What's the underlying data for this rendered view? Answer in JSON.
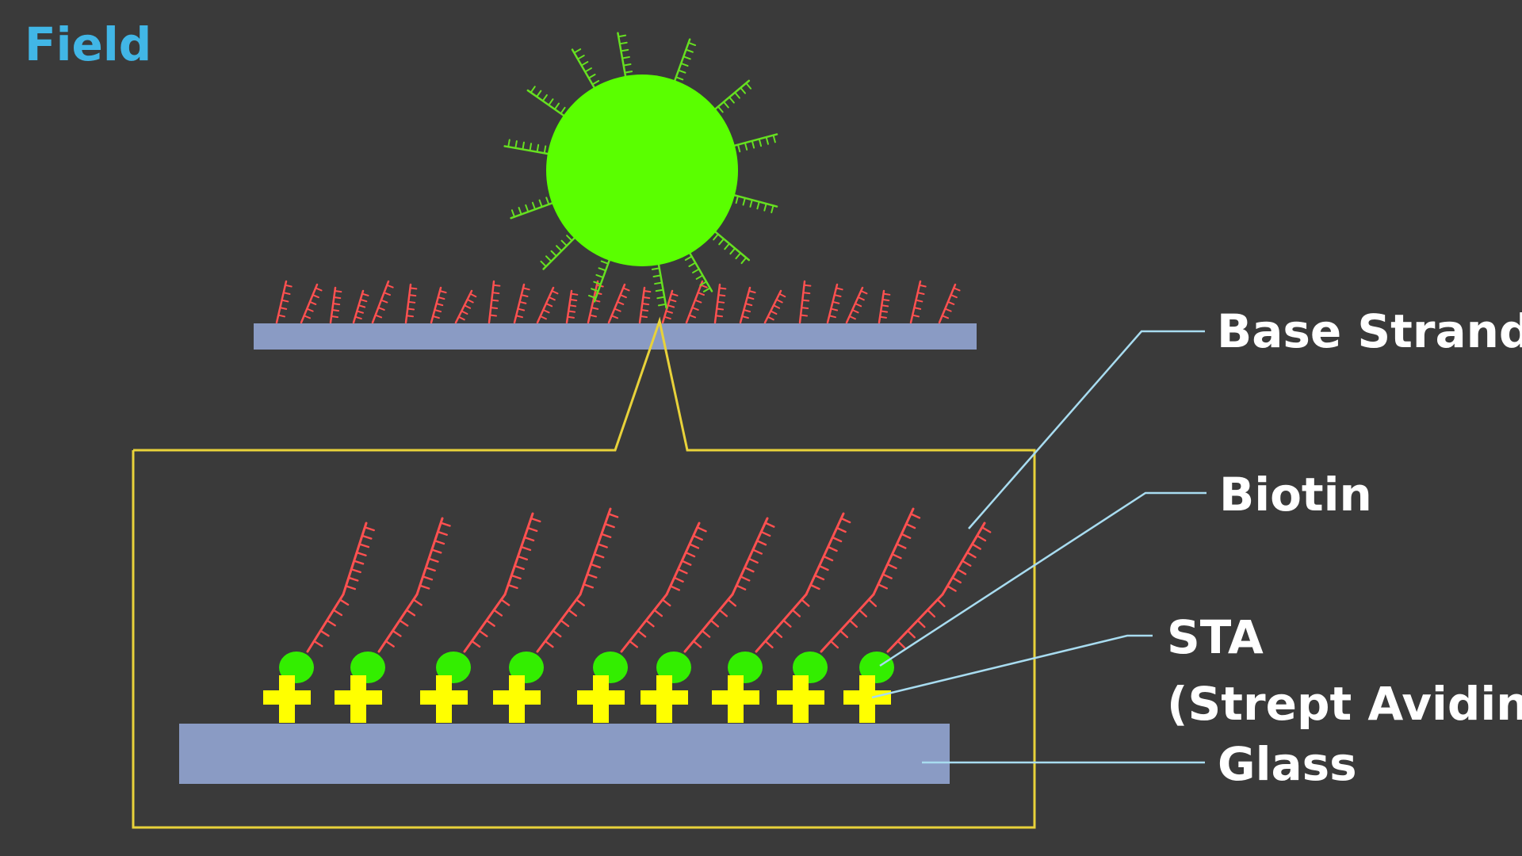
{
  "title": "Field",
  "labels": {
    "base_strand": "Base Strand",
    "biotin": "Biotin",
    "sta": "STA",
    "sta_full": "(Strept Avidin)",
    "glass": "Glass"
  },
  "colors": {
    "background": "#3a3a3a",
    "title": "#41b6e6",
    "label_text": "#ffffff",
    "bead": "#5aff00",
    "bead_strand": "#66e020",
    "base_strand": "#ff5050",
    "biotin": "#33ee00",
    "streptavidin": "#ffff00",
    "glass": "#8a9bc4",
    "zoom_outline": "#e8d23a",
    "callout_line": "#a8dcf0"
  },
  "icons": {
    "bead": "microbead-icon",
    "biotin": "biotin-blob-icon",
    "streptavidin": "plus-shape-icon"
  }
}
